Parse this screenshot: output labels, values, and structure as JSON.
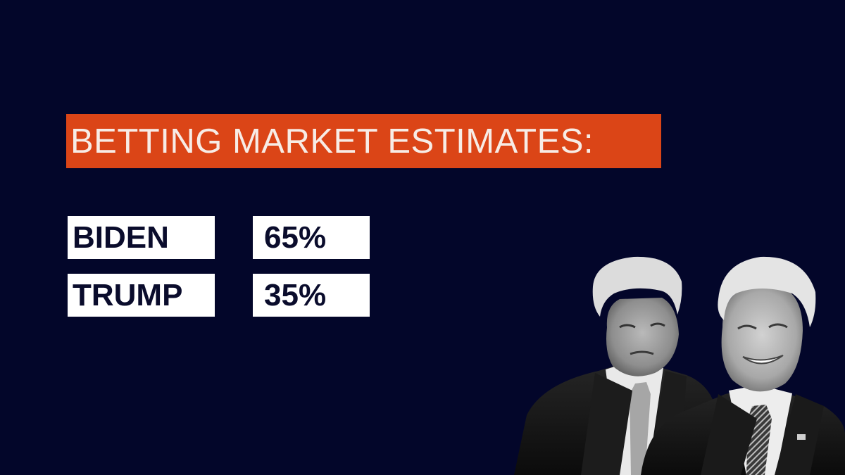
{
  "title": "BETTING MARKET ESTIMATES:",
  "colors": {
    "background": "#03062a",
    "banner": "#db4517",
    "banner_text": "#f7ece6",
    "cell_background": "#ffffff",
    "cell_text": "#0a0c2c"
  },
  "estimates": [
    {
      "name": "BIDEN",
      "percent": "65%",
      "value": 65
    },
    {
      "name": "TRUMP",
      "percent": "35%",
      "value": 35
    }
  ],
  "photo": {
    "subjects": [
      "trump-portrait",
      "biden-portrait"
    ],
    "style": "black-and-white"
  }
}
